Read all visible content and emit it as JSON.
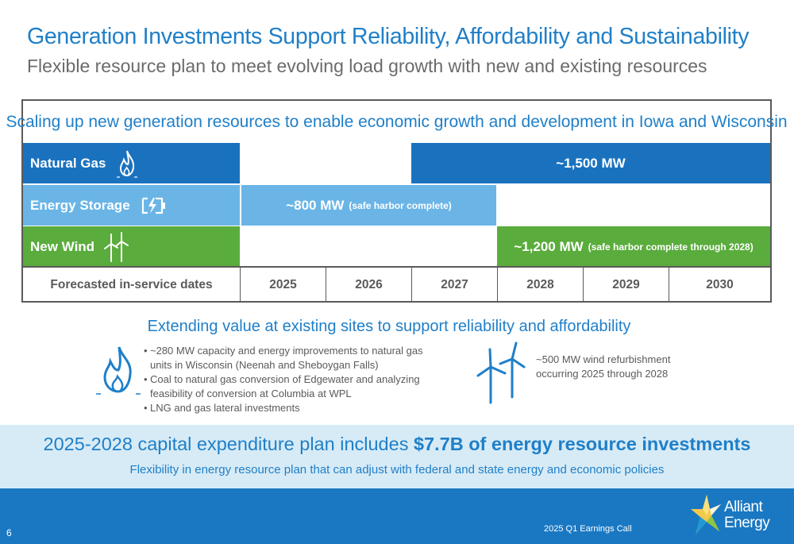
{
  "header": {
    "title": "Generation Investments Support Reliability, Affordability and Sustainability",
    "subtitle": "Flexible resource plan to meet evolving load growth with new and existing resources"
  },
  "table": {
    "heading": "Scaling up new generation resources to enable economic growth and development in Iowa and Wisconsin",
    "rows": [
      {
        "label": "Natural Gas",
        "icon": "flame-icon",
        "color": "#1a72bf",
        "value": "~1,500 MW",
        "note": "",
        "start": "2027",
        "end": "2030"
      },
      {
        "label": "Energy Storage",
        "icon": "battery-icon",
        "color": "#6ab5e6",
        "value": "~800 MW",
        "note": "(safe harbor complete)",
        "start": "2025",
        "end": "2027"
      },
      {
        "label": "New Wind",
        "icon": "wind-turbine-icon",
        "color": "#5aac3c",
        "value": "~1,200 MW",
        "note": "(safe harbor complete through 2028)",
        "start": "2028",
        "end": "2030"
      }
    ],
    "footer_label": "Forecasted in-service dates",
    "years": [
      "2025",
      "2026",
      "2027",
      "2028",
      "2029",
      "2030"
    ]
  },
  "existing": {
    "title": "Extending value at existing sites to support reliability and affordability",
    "bullets": [
      [
        "~280 MW capacity and energy improvements to natural gas",
        "units in Wisconsin (Neenah and Sheboygan Falls)"
      ],
      [
        "Coal to natural gas conversion of Edgewater and analyzing",
        "feasibility of conversion at Columbia at WPL"
      ],
      [
        "LNG and gas lateral investments"
      ]
    ],
    "wind_lines": [
      "~500 MW wind refurbishment",
      "occurring 2025 through 2028"
    ]
  },
  "capex": {
    "main_prefix": "2025-2028 capital expenditure plan includes ",
    "main_bold": "$7.7B of energy resource investments",
    "sub": "Flexibility in energy resource plan that can adjust with federal and state energy and economic policies"
  },
  "footer": {
    "page_number": "6",
    "event": "2025 Q1 Earnings Call",
    "logo_line1": "Alliant",
    "logo_line2": "Energy"
  },
  "colors": {
    "accent": "#1f7fc8",
    "natural_gas": "#1a72bf",
    "energy_storage": "#6ab5e6",
    "new_wind": "#5aac3c",
    "footer_bar": "#1a78c2",
    "capex_band": "#d7ebf6"
  }
}
